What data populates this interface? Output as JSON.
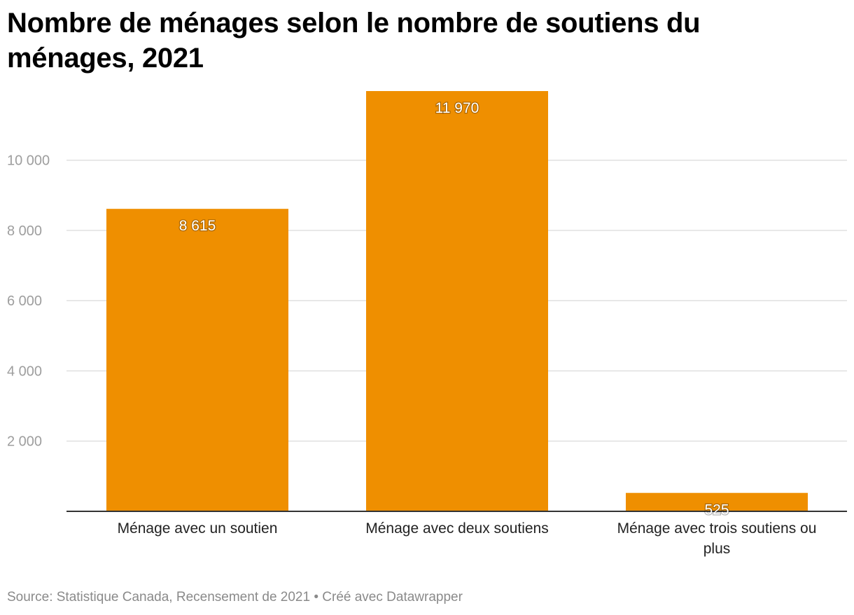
{
  "title": "Nombre de ménages selon le nombre de soutiens du ménages, 2021",
  "footer": {
    "source": "Source: Statistique Canada, Recensement de 2021",
    "separator": " • ",
    "credit": "Créé avec Datawrapper"
  },
  "colors": {
    "bar": "#ef8f00",
    "grid": "#e0e0e0",
    "tick_text": "#9e9e9e",
    "baseline": "#333333",
    "category_text": "#222222",
    "value_label": "#ffffff"
  },
  "chart_data": {
    "type": "bar",
    "title": "Nombre de ménages selon le nombre de soutiens du ménages, 2021",
    "categories": [
      [
        "Ménage avec un soutien"
      ],
      [
        "Ménage avec deux soutiens"
      ],
      [
        "Ménage avec trois soutiens ou",
        "plus"
      ]
    ],
    "values": [
      8615,
      11970,
      525
    ],
    "value_labels": [
      "8 615",
      "11 970",
      "525"
    ],
    "ylim": [
      0,
      11970
    ],
    "yticks": [
      2000,
      4000,
      6000,
      8000,
      10000
    ],
    "ytick_labels": [
      "2 000",
      "4 000",
      "6 000",
      "8 000",
      "10 000"
    ],
    "grid": true,
    "xlabel": "",
    "ylabel": ""
  }
}
